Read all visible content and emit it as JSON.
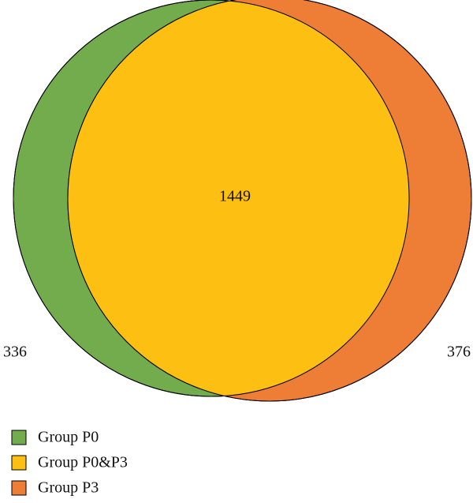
{
  "chart_data": {
    "type": "venn",
    "regions": [
      {
        "name": "Group P0",
        "color": "#72ac4c",
        "value": 336
      },
      {
        "name": "Group P0&P3",
        "color": "#fdbf12",
        "value": 1449
      },
      {
        "name": "Group P3",
        "color": "#ee7d35",
        "value": 376
      }
    ]
  }
}
